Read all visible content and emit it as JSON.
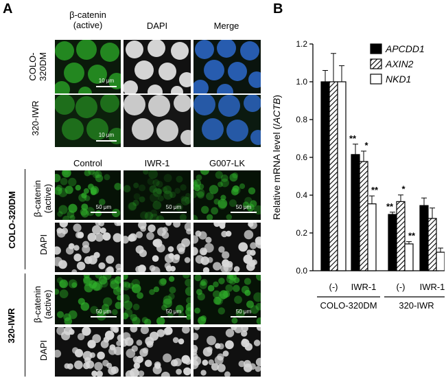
{
  "panelA": {
    "letter": "A",
    "top_headers": [
      "β-catenin\n(active)",
      "DAPI",
      "Merge"
    ],
    "top_rows": [
      "COLO-\n320DM",
      "320-IWR"
    ],
    "top_scale": "10 μm",
    "bottom_headers": [
      "Control",
      "IWR-1",
      "G007-LK"
    ],
    "bottom_groups": [
      "COLO-320DM",
      "320-IWR"
    ],
    "bottom_stain_beta": "β-catenin\n(active)",
    "bottom_stain_dapi": "DAPI",
    "bottom_scale": "50 μm",
    "colors": {
      "beta": "#2fb02a",
      "dapi": "#d8d8d8",
      "merge_blue": "#2a5fd0"
    }
  },
  "panelB": {
    "letter": "B",
    "chart_data": {
      "type": "bar",
      "ylabel_prefix": "Relative mRNA level (/",
      "ylabel_italic": "ACTB",
      "ylabel_suffix": ")",
      "ylim": [
        0,
        1.2
      ],
      "yticks": [
        "0.0",
        "0.2",
        "0.4",
        "0.6",
        "0.8",
        "1.0",
        "1.2"
      ],
      "categories": [
        "(-)",
        "IWR-1",
        "(-)",
        "IWR-1"
      ],
      "groups": [
        {
          "label": "COLO-320DM",
          "span": [
            0,
            1
          ]
        },
        {
          "label": "320-IWR",
          "span": [
            2,
            3
          ]
        }
      ],
      "series": [
        {
          "name": "APCDD1",
          "pattern": "solid",
          "values": [
            1.0,
            0.615,
            0.298,
            0.345
          ],
          "errors": [
            0.06,
            0.055,
            0.012,
            0.04
          ],
          "sig": [
            "",
            "**",
            "**",
            ""
          ]
        },
        {
          "name": "AXIN2",
          "pattern": "hatch",
          "values": [
            1.0,
            0.578,
            0.366,
            0.277
          ],
          "errors": [
            0.15,
            0.055,
            0.035,
            0.055
          ],
          "sig": [
            "",
            "*",
            "*",
            ""
          ]
        },
        {
          "name": "NKD1",
          "pattern": "open",
          "values": [
            1.0,
            0.354,
            0.142,
            0.098
          ],
          "errors": [
            0.085,
            0.042,
            0.012,
            0.022
          ],
          "sig": [
            "",
            "**",
            "**",
            ""
          ]
        }
      ],
      "legend": "top-right"
    }
  }
}
